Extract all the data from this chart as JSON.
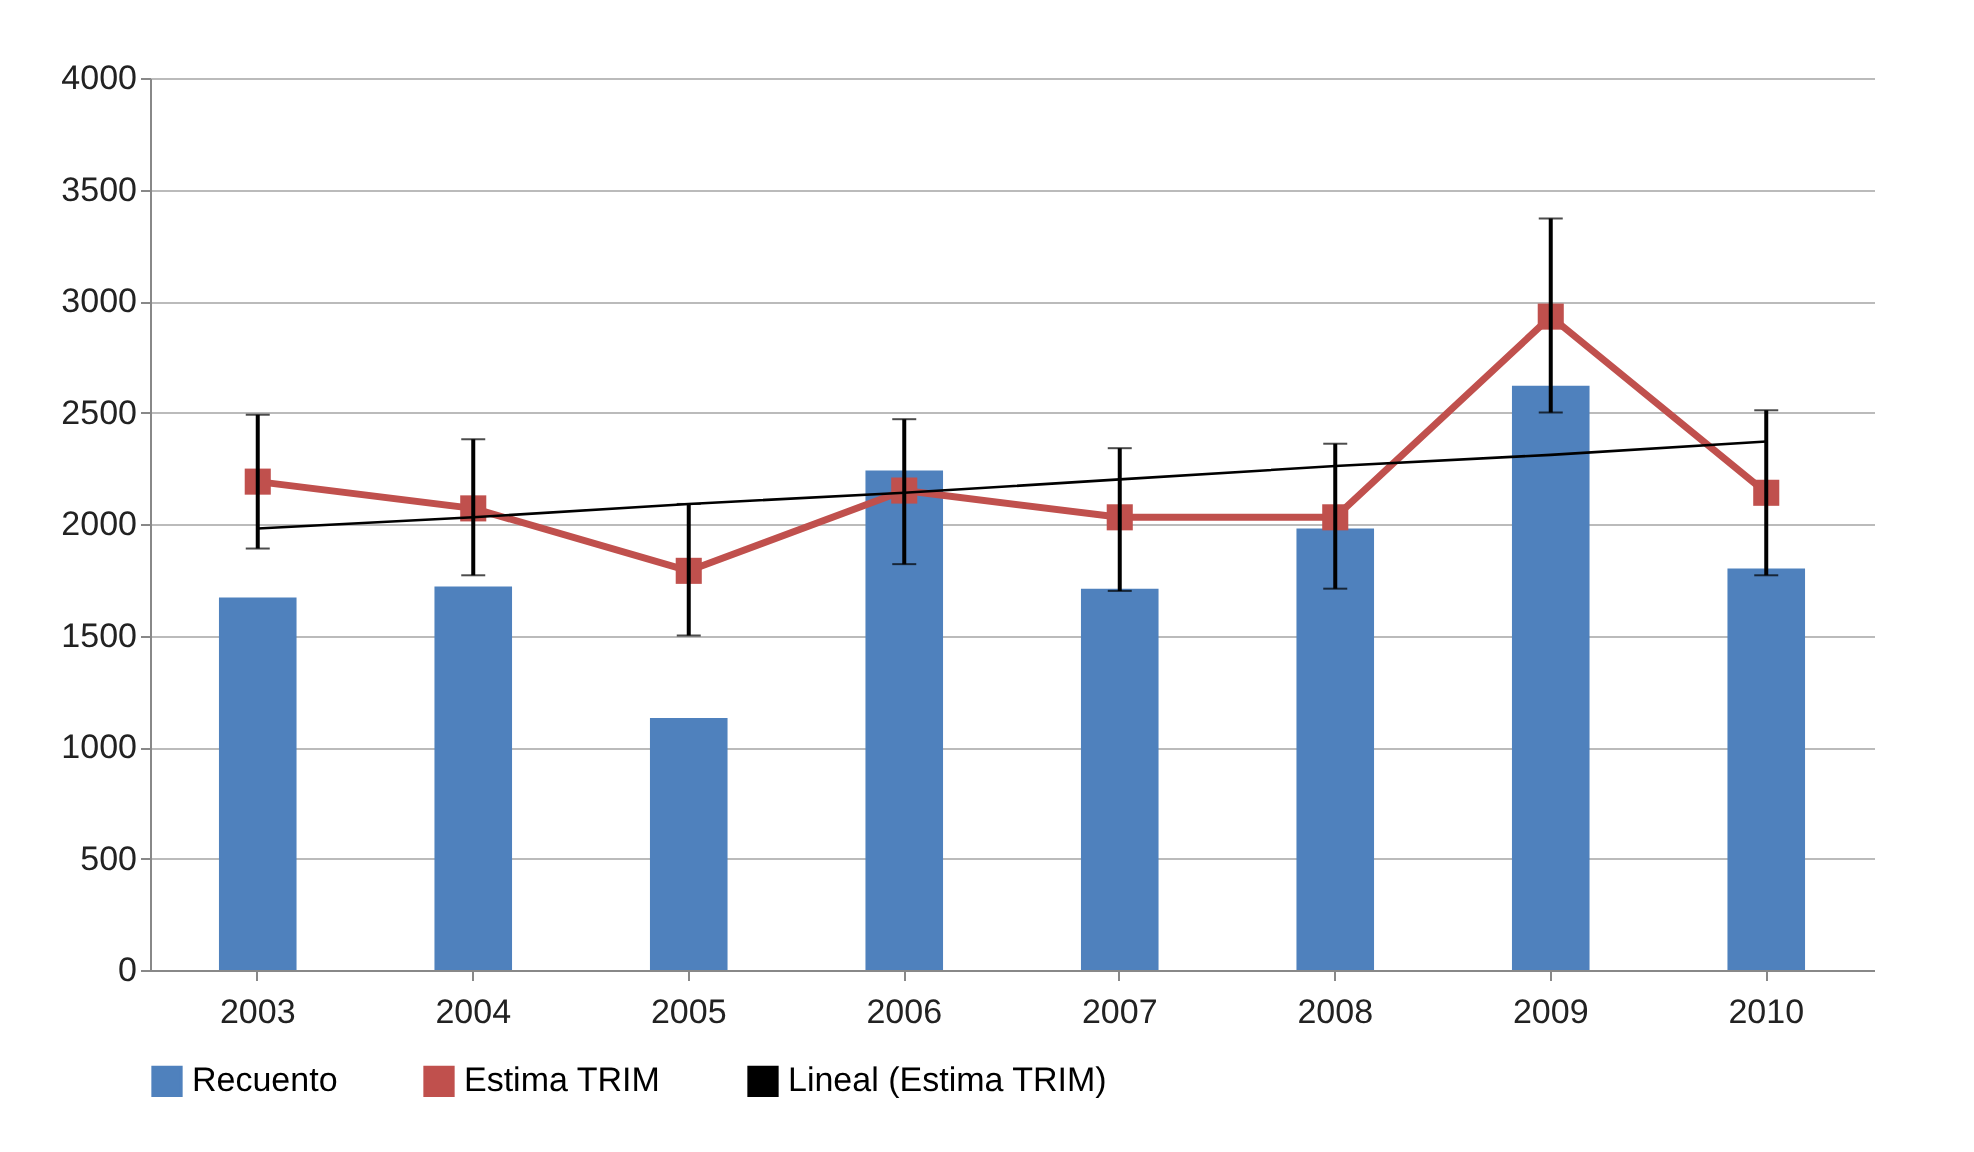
{
  "chart_data": {
    "type": "bar",
    "categories": [
      "2003",
      "2004",
      "2005",
      "2006",
      "2007",
      "2008",
      "2009",
      "2010"
    ],
    "series": [
      {
        "name": "Recuento",
        "color": "#4f81bd",
        "values": [
          1670,
          1720,
          1130,
          2240,
          1710,
          1980,
          2620,
          1800
        ]
      },
      {
        "name": "Estima TRIM",
        "type": "line",
        "color": "#c0504d",
        "marker": "square",
        "values": [
          2190,
          2070,
          1790,
          2150,
          2030,
          2030,
          2930,
          2140
        ],
        "errors": [
          [
            1890,
            2490
          ],
          [
            1770,
            2380
          ],
          [
            1500,
            2090
          ],
          [
            1820,
            2470
          ],
          [
            1700,
            2340
          ],
          [
            1710,
            2360
          ],
          [
            2500,
            3370
          ],
          [
            1770,
            2510
          ]
        ]
      },
      {
        "name": "Lineal (Estima TRIM)",
        "type": "line",
        "color": "#000000",
        "marker": "none",
        "values": [
          1980,
          2030,
          2090,
          2140,
          2200,
          2260,
          2310,
          2370
        ]
      }
    ],
    "ylim": [
      0,
      4000
    ],
    "yticks": [
      0,
      500,
      1000,
      1500,
      2000,
      2500,
      3000,
      3500,
      4000
    ],
    "grid": "y",
    "legend": "bottom"
  }
}
